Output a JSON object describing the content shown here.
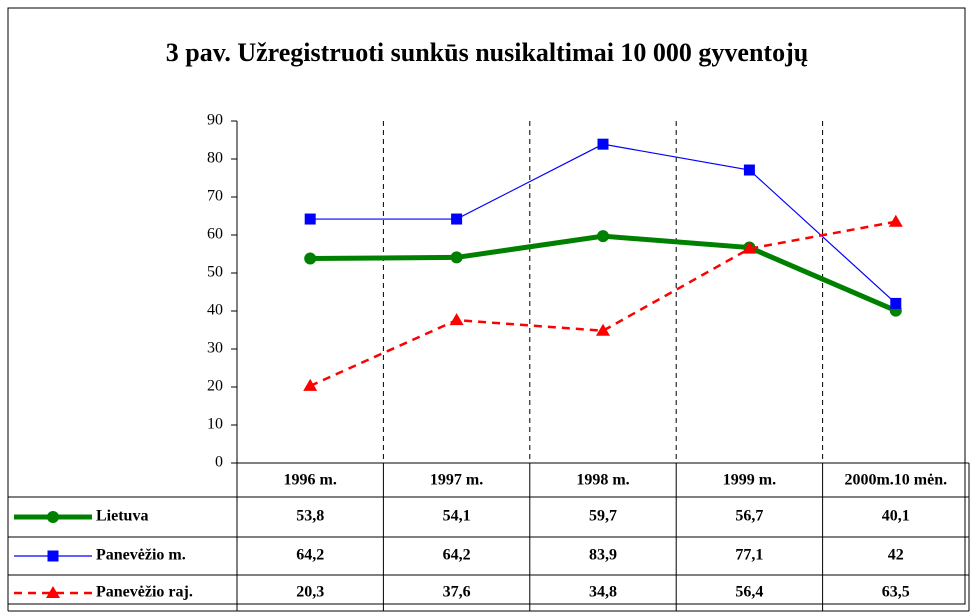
{
  "chart_data": {
    "type": "line",
    "title": "3 pav. Užregistruoti sunkūs nusikaltimai 10 000 gyventojų",
    "categories": [
      "1996 m.",
      "1997 m.",
      "1998 m.",
      "1999 m.",
      "2000m.10 mėn."
    ],
    "series": [
      {
        "name": "Lietuva",
        "color": "#008000",
        "values": [
          53.8,
          54.1,
          59.7,
          56.7,
          40.1
        ],
        "value_labels": [
          "53,8",
          "54,1",
          "59,7",
          "56,7",
          "40,1"
        ]
      },
      {
        "name": "Panevėžio m.",
        "color": "#0000ff",
        "values": [
          64.2,
          64.2,
          83.9,
          77.1,
          42
        ],
        "value_labels": [
          "64,2",
          "64,2",
          "83,9",
          "77,1",
          "42"
        ]
      },
      {
        "name": "Panevėžio raj.",
        "color": "#ff0000",
        "values": [
          20.3,
          37.6,
          34.8,
          56.4,
          63.5
        ],
        "value_labels": [
          "20,3",
          "37,6",
          "34,8",
          "56,4",
          "63,5"
        ]
      }
    ],
    "ylim": [
      0,
      90
    ],
    "yticks": [
      0,
      10,
      20,
      30,
      40,
      50,
      60,
      70,
      80,
      90
    ]
  }
}
